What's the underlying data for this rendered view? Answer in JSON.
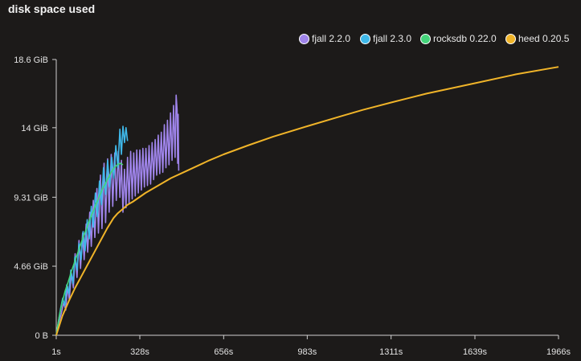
{
  "chart_data": {
    "type": "line",
    "title": "disk space used",
    "xlabel": "",
    "ylabel": "",
    "x_ticks": [
      "1s",
      "328s",
      "656s",
      "983s",
      "1311s",
      "1639s",
      "1966s"
    ],
    "x_tick_values": [
      1,
      328,
      656,
      983,
      1311,
      1639,
      1966
    ],
    "y_ticks": [
      "0 B",
      "4.66 GiB",
      "9.31 GiB",
      "14 GiB",
      "18.6 GiB"
    ],
    "y_tick_values": [
      0,
      4.66,
      9.31,
      14,
      18.6
    ],
    "xlim": [
      1,
      1966
    ],
    "ylim": [
      0,
      18.6
    ],
    "y_unit": "GiB",
    "grid": false,
    "legend_position": "top-right",
    "series": [
      {
        "name": "fjall 2.2.0",
        "color": "#9f84ea",
        "points": [
          [
            1,
            0
          ],
          [
            10,
            0.8
          ],
          [
            20,
            1.4
          ],
          [
            30,
            2.2
          ],
          [
            38,
            1.7
          ],
          [
            45,
            3.3
          ],
          [
            52,
            2.4
          ],
          [
            60,
            4.2
          ],
          [
            68,
            3.2
          ],
          [
            75,
            5.5
          ],
          [
            82,
            3.9
          ],
          [
            90,
            6.4
          ],
          [
            96,
            4.5
          ],
          [
            104,
            6.9
          ],
          [
            110,
            5.1
          ],
          [
            118,
            7.5
          ],
          [
            124,
            5.6
          ],
          [
            132,
            8.3
          ],
          [
            138,
            6.0
          ],
          [
            146,
            9.1
          ],
          [
            152,
            6.6
          ],
          [
            160,
            9.9
          ],
          [
            166,
            6.9
          ],
          [
            174,
            10.8
          ],
          [
            180,
            7.2
          ],
          [
            188,
            11.6
          ],
          [
            194,
            7.6
          ],
          [
            202,
            11.9
          ],
          [
            208,
            8.3
          ],
          [
            216,
            12.2
          ],
          [
            222,
            8.7
          ],
          [
            230,
            12.3
          ],
          [
            236,
            9.1
          ],
          [
            244,
            12.4
          ],
          [
            250,
            9.3
          ],
          [
            256,
            11.8
          ],
          [
            262,
            8.3
          ],
          [
            268,
            11.2
          ],
          [
            274,
            8.6
          ],
          [
            280,
            12.0
          ],
          [
            286,
            8.9
          ],
          [
            292,
            12.4
          ],
          [
            298,
            9.2
          ],
          [
            304,
            12.3
          ],
          [
            310,
            9.4
          ],
          [
            316,
            12.5
          ],
          [
            322,
            9.6
          ],
          [
            328,
            12.5
          ],
          [
            334,
            9.8
          ],
          [
            340,
            12.6
          ],
          [
            346,
            10.0
          ],
          [
            352,
            12.6
          ],
          [
            358,
            10.1
          ],
          [
            364,
            12.8
          ],
          [
            370,
            10.2
          ],
          [
            376,
            13.0
          ],
          [
            382,
            10.5
          ],
          [
            388,
            13.2
          ],
          [
            394,
            10.8
          ],
          [
            400,
            13.5
          ],
          [
            406,
            10.9
          ],
          [
            412,
            13.7
          ],
          [
            418,
            11.0
          ],
          [
            424,
            14.2
          ],
          [
            430,
            11.3
          ],
          [
            436,
            14.5
          ],
          [
            442,
            11.5
          ],
          [
            448,
            15.0
          ],
          [
            454,
            11.8
          ],
          [
            460,
            15.5
          ],
          [
            466,
            12.0
          ],
          [
            470,
            16.2
          ],
          [
            474,
            15.2
          ],
          [
            476,
            11.6
          ],
          [
            478,
            14.9
          ],
          [
            480,
            11.1
          ]
        ]
      },
      {
        "name": "fjall 2.3.0",
        "color": "#3fb9ea",
        "points": [
          [
            1,
            0
          ],
          [
            10,
            1.0
          ],
          [
            18,
            1.8
          ],
          [
            26,
            2.5
          ],
          [
            34,
            2.0
          ],
          [
            42,
            3.4
          ],
          [
            50,
            2.8
          ],
          [
            58,
            4.4
          ],
          [
            66,
            3.5
          ],
          [
            74,
            5.3
          ],
          [
            82,
            4.4
          ],
          [
            90,
            6.2
          ],
          [
            98,
            5.1
          ],
          [
            106,
            7.0
          ],
          [
            114,
            5.7
          ],
          [
            122,
            7.8
          ],
          [
            130,
            6.5
          ],
          [
            138,
            8.7
          ],
          [
            146,
            7.3
          ],
          [
            154,
            9.6
          ],
          [
            162,
            8.0
          ],
          [
            170,
            10.4
          ],
          [
            178,
            8.8
          ],
          [
            186,
            11.3
          ],
          [
            194,
            9.5
          ],
          [
            202,
            11.8
          ],
          [
            210,
            10.0
          ],
          [
            218,
            12.0
          ],
          [
            226,
            10.6
          ],
          [
            234,
            12.8
          ],
          [
            242,
            11.3
          ],
          [
            250,
            13.9
          ],
          [
            256,
            12.2
          ],
          [
            262,
            14.1
          ],
          [
            268,
            13.0
          ],
          [
            274,
            14.0
          ],
          [
            280,
            13.1
          ]
        ]
      },
      {
        "name": "rocksdb 0.22.0",
        "color": "#44d47a",
        "points": [
          [
            1,
            0
          ],
          [
            12,
            1.2
          ],
          [
            24,
            2.2
          ],
          [
            36,
            3.0
          ],
          [
            48,
            3.6
          ],
          [
            60,
            4.3
          ],
          [
            72,
            4.9
          ],
          [
            84,
            5.5
          ],
          [
            96,
            6.1
          ],
          [
            108,
            6.7
          ],
          [
            120,
            7.2
          ],
          [
            132,
            7.8
          ],
          [
            144,
            8.3
          ],
          [
            156,
            8.8
          ],
          [
            168,
            9.3
          ],
          [
            180,
            9.8
          ],
          [
            192,
            10.2
          ],
          [
            204,
            10.6
          ],
          [
            216,
            11.0
          ],
          [
            228,
            11.3
          ],
          [
            240,
            11.5
          ],
          [
            252,
            11.6
          ],
          [
            262,
            11.5
          ]
        ]
      },
      {
        "name": "heed 0.20.5",
        "color": "#f0b429",
        "points": [
          [
            1,
            0
          ],
          [
            25,
            1.3
          ],
          [
            50,
            2.3
          ],
          [
            75,
            3.2
          ],
          [
            100,
            4.0
          ],
          [
            125,
            4.8
          ],
          [
            150,
            5.6
          ],
          [
            175,
            6.4
          ],
          [
            200,
            7.2
          ],
          [
            225,
            7.9
          ],
          [
            240,
            8.2
          ],
          [
            260,
            8.5
          ],
          [
            280,
            8.8
          ],
          [
            300,
            9.0
          ],
          [
            325,
            9.3
          ],
          [
            350,
            9.6
          ],
          [
            400,
            10.1
          ],
          [
            450,
            10.6
          ],
          [
            500,
            11.0
          ],
          [
            550,
            11.4
          ],
          [
            600,
            11.8
          ],
          [
            656,
            12.2
          ],
          [
            750,
            12.8
          ],
          [
            850,
            13.4
          ],
          [
            983,
            14.1
          ],
          [
            1100,
            14.7
          ],
          [
            1200,
            15.2
          ],
          [
            1311,
            15.7
          ],
          [
            1450,
            16.3
          ],
          [
            1639,
            17.0
          ],
          [
            1800,
            17.6
          ],
          [
            1966,
            18.1
          ]
        ]
      }
    ]
  }
}
